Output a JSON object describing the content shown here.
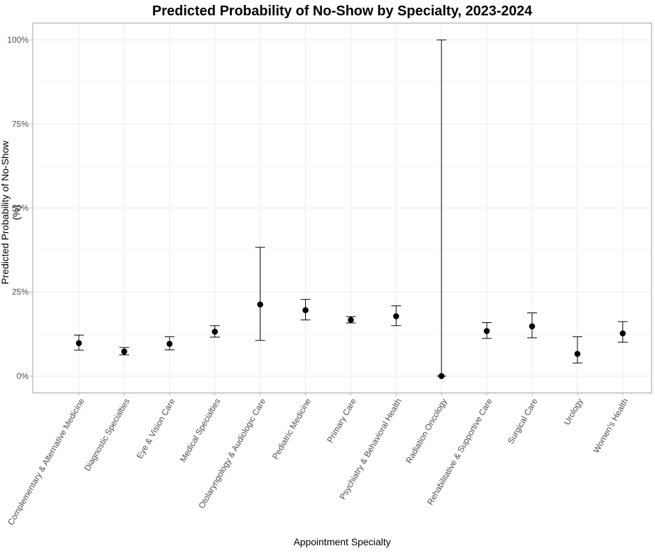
{
  "chart_data": {
    "type": "scatter",
    "title": "Predicted Probability of No-Show by Specialty, 2023-2024",
    "xlabel": "Appointment Specialty",
    "ylabel": "Predicted Probability of No-Show (%)",
    "ylim": [
      -5,
      105
    ],
    "yticks": [
      0,
      25,
      50,
      75,
      100
    ],
    "ytick_labels": [
      "0%",
      "25%",
      "50%",
      "75%",
      "100%"
    ],
    "grid": true,
    "categories": [
      "Complementary & Alternative Medicine",
      "Diagnostic Specialties",
      "Eye & Vision Care",
      "Medical Specialties",
      "Otolaryngology & Audiologic Care",
      "Pediatric Medicine",
      "Primary Care",
      "Psychiatry & Behavioral Health",
      "Radiation Oncology",
      "Rehabilitative & Supportive Care",
      "Surgical Care",
      "Urology",
      "Women's Health"
    ],
    "values": [
      9.8,
      7.3,
      9.6,
      13.2,
      21.3,
      19.6,
      16.7,
      17.8,
      0.0,
      13.4,
      14.8,
      6.6,
      12.7
    ],
    "lower": [
      7.7,
      6.3,
      7.8,
      11.6,
      10.6,
      16.7,
      15.8,
      15.0,
      0.0,
      11.2,
      11.4,
      3.9,
      10.1
    ],
    "upper": [
      12.2,
      8.5,
      11.7,
      15.0,
      38.3,
      22.8,
      17.7,
      20.9,
      100.0,
      15.9,
      18.8,
      11.7,
      16.2
    ]
  }
}
